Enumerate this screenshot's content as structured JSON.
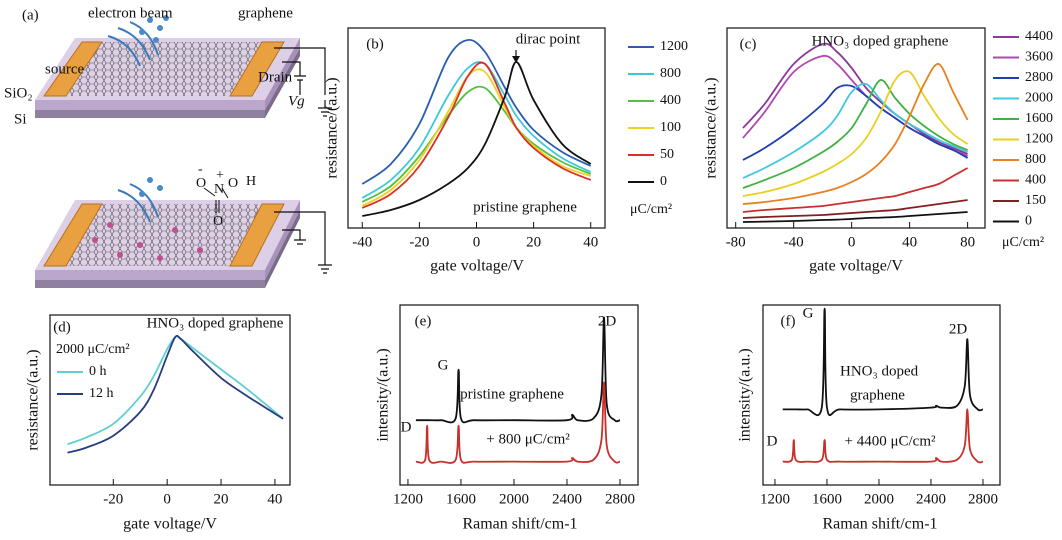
{
  "diagram": {
    "label": "(a)",
    "beam": "electron beam",
    "film": "graphene",
    "source": "source",
    "drain": "Drain",
    "oxide": "SiO₂",
    "substrate": "Si",
    "gate": "Vg",
    "atoms": [
      "O",
      "N",
      "O",
      "H",
      "O"
    ],
    "charges": [
      "-",
      "+"
    ]
  },
  "chart_data": [
    {
      "type": "line",
      "panel_label": "(b)",
      "x_label": "gate voltage/V",
      "y_label": "resistance/(a.u.)",
      "annotations": [
        "dirac point",
        "pristine graphene"
      ],
      "legend_title": "μC/cm²",
      "x": [
        -40,
        -30,
        -20,
        -10,
        -3,
        3,
        10,
        14,
        20,
        30,
        40
      ],
      "xlim": [
        -45,
        45
      ],
      "xticks": [
        -40,
        -20,
        0,
        20,
        40
      ],
      "ylim": [
        0,
        1
      ],
      "series": [
        {
          "name": "1200",
          "color": "#2a5db0",
          "values": [
            0.22,
            0.32,
            0.52,
            0.85,
            0.94,
            0.88,
            0.7,
            0.6,
            0.49,
            0.38,
            0.31
          ]
        },
        {
          "name": "800",
          "color": "#3cc8d8",
          "values": [
            0.15,
            0.24,
            0.4,
            0.66,
            0.8,
            0.82,
            0.66,
            0.56,
            0.46,
            0.35,
            0.28
          ]
        },
        {
          "name": "400",
          "color": "#55c040",
          "values": [
            0.13,
            0.21,
            0.36,
            0.56,
            0.68,
            0.7,
            0.58,
            0.5,
            0.42,
            0.33,
            0.27
          ]
        },
        {
          "name": "100",
          "color": "#f0d020",
          "values": [
            0.11,
            0.19,
            0.34,
            0.58,
            0.76,
            0.78,
            0.6,
            0.5,
            0.41,
            0.31,
            0.26
          ]
        },
        {
          "name": "50",
          "color": "#d83028",
          "values": [
            0.1,
            0.17,
            0.31,
            0.55,
            0.76,
            0.82,
            0.62,
            0.5,
            0.4,
            0.3,
            0.24
          ]
        },
        {
          "name": "0",
          "color": "#111111",
          "values": [
            0.06,
            0.09,
            0.14,
            0.22,
            0.3,
            0.42,
            0.66,
            0.83,
            0.64,
            0.42,
            0.32
          ]
        }
      ]
    },
    {
      "type": "line",
      "panel_label": "(c)",
      "x_label": "gate voltage/V",
      "y_label": "resistance/(a.u.)",
      "annotations": [
        "HNO₃ doped graphene"
      ],
      "legend_title": "μC/cm²",
      "x": [
        -75,
        -60,
        -40,
        -20,
        -10,
        0,
        10,
        20,
        30,
        40,
        50,
        60,
        70,
        80
      ],
      "xlim": [
        -86,
        92
      ],
      "xticks": [
        -80,
        -40,
        0,
        40,
        80
      ],
      "ylim": [
        0,
        1
      ],
      "series": [
        {
          "name": "4400",
          "color": "#8a3a9a",
          "values": [
            0.5,
            0.62,
            0.82,
            0.92,
            0.88,
            0.8,
            0.7,
            0.63,
            0.57,
            0.52,
            0.47,
            0.43,
            0.4,
            0.37
          ]
        },
        {
          "name": "3600",
          "color": "#b048b0",
          "values": [
            0.45,
            0.58,
            0.78,
            0.86,
            0.82,
            0.74,
            0.66,
            0.6,
            0.55,
            0.5,
            0.46,
            0.42,
            0.39,
            0.36
          ]
        },
        {
          "name": "2800",
          "color": "#2040b0",
          "values": [
            0.34,
            0.4,
            0.5,
            0.62,
            0.7,
            0.71,
            0.66,
            0.6,
            0.55,
            0.5,
            0.46,
            0.42,
            0.39,
            0.35
          ]
        },
        {
          "name": "2000",
          "color": "#40c8e0",
          "values": [
            0.25,
            0.3,
            0.38,
            0.48,
            0.56,
            0.68,
            0.72,
            0.64,
            0.57,
            0.52,
            0.48,
            0.44,
            0.41,
            0.38
          ]
        },
        {
          "name": "1600",
          "color": "#40b040",
          "values": [
            0.2,
            0.24,
            0.3,
            0.38,
            0.43,
            0.5,
            0.62,
            0.74,
            0.65,
            0.57,
            0.51,
            0.46,
            0.42,
            0.39
          ]
        },
        {
          "name": "1200",
          "color": "#e8d020",
          "values": [
            0.16,
            0.18,
            0.22,
            0.28,
            0.32,
            0.37,
            0.45,
            0.58,
            0.74,
            0.78,
            0.66,
            0.55,
            0.47,
            0.42
          ]
        },
        {
          "name": "800",
          "color": "#e88020",
          "values": [
            0.12,
            0.13,
            0.15,
            0.18,
            0.2,
            0.23,
            0.27,
            0.33,
            0.42,
            0.56,
            0.72,
            0.82,
            0.68,
            0.54
          ]
        },
        {
          "name": "400",
          "color": "#c83030",
          "values": [
            0.08,
            0.09,
            0.1,
            0.11,
            0.12,
            0.13,
            0.14,
            0.15,
            0.16,
            0.18,
            0.2,
            0.22,
            0.26,
            0.3
          ]
        },
        {
          "name": "150",
          "color": "#802020",
          "values": [
            0.05,
            0.055,
            0.06,
            0.065,
            0.07,
            0.075,
            0.08,
            0.085,
            0.09,
            0.1,
            0.11,
            0.12,
            0.13,
            0.14
          ]
        },
        {
          "name": "0",
          "color": "#111111",
          "values": [
            0.03,
            0.032,
            0.035,
            0.04,
            0.042,
            0.045,
            0.05,
            0.052,
            0.055,
            0.06,
            0.065,
            0.07,
            0.075,
            0.08
          ]
        }
      ]
    },
    {
      "type": "line",
      "panel_label": "(d)",
      "x_label": "gate voltage/V",
      "y_label": "resistance/(a.u.)",
      "annotations": [
        "HNO₃ doped graphene"
      ],
      "legend_title": "2000 μC/cm²",
      "x": [
        -37,
        -30,
        -20,
        -10,
        -5,
        0,
        3,
        5,
        10,
        20,
        30,
        43
      ],
      "xlim": [
        -43.5,
        45.6
      ],
      "xticks": [
        -20,
        0,
        20,
        40
      ],
      "ylim": [
        0,
        1
      ],
      "series": [
        {
          "name": "0 h",
          "color": "#5fcfcf",
          "values": [
            0.24,
            0.28,
            0.36,
            0.52,
            0.64,
            0.8,
            0.87,
            0.86,
            0.8,
            0.68,
            0.56,
            0.39
          ]
        },
        {
          "name": "12 h",
          "color": "#283c80",
          "values": [
            0.19,
            0.22,
            0.29,
            0.43,
            0.56,
            0.76,
            0.87,
            0.86,
            0.78,
            0.63,
            0.52,
            0.39
          ]
        }
      ]
    },
    {
      "type": "line",
      "panel_label": "(e)",
      "x_label": "Raman shift/cm-1",
      "y_label": "intensity/(a.u.)",
      "annotations": [
        "G",
        "2D",
        "D",
        "pristine graphene",
        "+ 800 μC/cm²"
      ],
      "x": [
        1260,
        1330,
        1345,
        1360,
        1450,
        1560,
        1582,
        1600,
        1700,
        2000,
        2400,
        2440,
        2480,
        2600,
        2660,
        2680,
        2700,
        2760,
        2800
      ],
      "xlim": [
        1140,
        2936
      ],
      "xticks": [
        1200,
        1600,
        2000,
        2400,
        2800
      ],
      "ylim": [
        0,
        1
      ],
      "series": [
        {
          "color": "#111111",
          "values": [
            0.36,
            0.36,
            0.36,
            0.36,
            0.36,
            0.37,
            0.64,
            0.37,
            0.36,
            0.36,
            0.36,
            0.39,
            0.36,
            0.37,
            0.5,
            0.93,
            0.45,
            0.36,
            0.36
          ]
        },
        {
          "color": "#c8302c",
          "values": [
            0.13,
            0.14,
            0.33,
            0.14,
            0.13,
            0.14,
            0.33,
            0.14,
            0.13,
            0.13,
            0.13,
            0.15,
            0.13,
            0.14,
            0.25,
            0.57,
            0.22,
            0.13,
            0.13
          ]
        }
      ]
    },
    {
      "type": "line",
      "panel_label": "(f)",
      "x_label": "Raman shift/cm-1",
      "y_label": "intensity/(a.u.)",
      "annotations": [
        "G",
        "2D",
        "D",
        "HNO₃ doped",
        "graphene",
        "+ 4400 μC/cm²"
      ],
      "x": [
        1260,
        1330,
        1345,
        1360,
        1450,
        1560,
        1582,
        1600,
        1700,
        2000,
        2400,
        2440,
        2480,
        2600,
        2660,
        2680,
        2700,
        2760,
        2800
      ],
      "xlim": [
        1108,
        2931
      ],
      "xticks": [
        1200,
        1600,
        2000,
        2400,
        2800
      ],
      "ylim": [
        0,
        1
      ],
      "series": [
        {
          "color": "#111111",
          "values": [
            0.42,
            0.42,
            0.42,
            0.42,
            0.42,
            0.43,
            0.98,
            0.43,
            0.42,
            0.42,
            0.43,
            0.44,
            0.43,
            0.44,
            0.55,
            0.81,
            0.5,
            0.42,
            0.42
          ]
        },
        {
          "color": "#c8302c",
          "values": [
            0.13,
            0.14,
            0.25,
            0.14,
            0.13,
            0.14,
            0.25,
            0.14,
            0.13,
            0.13,
            0.13,
            0.15,
            0.13,
            0.14,
            0.22,
            0.42,
            0.2,
            0.13,
            0.13
          ]
        }
      ]
    }
  ]
}
